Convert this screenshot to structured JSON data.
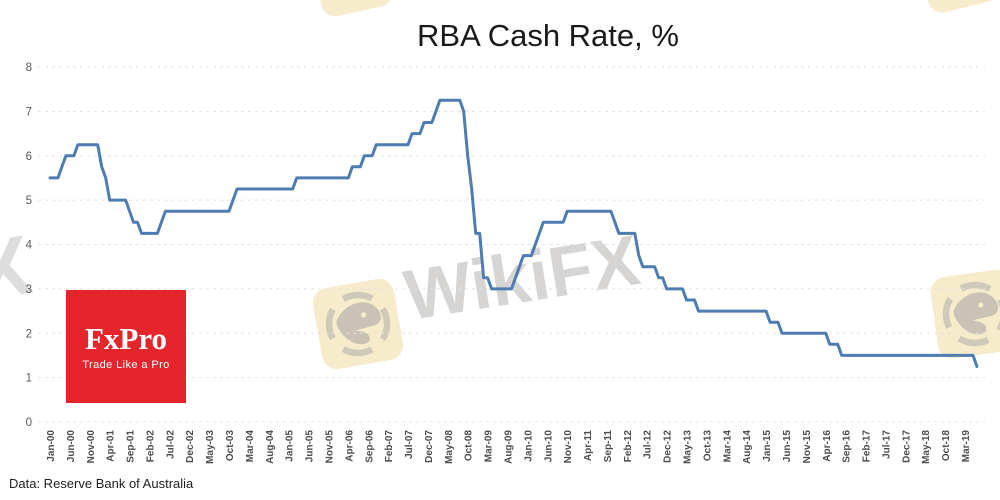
{
  "title": "RBA Cash Rate, %",
  "source_note": "Data: Reserve Bank of Australia",
  "logo": {
    "name": "FxPro",
    "tagline": "Trade Like a Pro",
    "bg_color": "#e4252b",
    "text_color": "#ffffff"
  },
  "watermark": {
    "text": "WikiFX",
    "partial_text": "X",
    "badge_color": "#f6ebca",
    "glyph_color": "#cbc5b8"
  },
  "chart_data": {
    "type": "line",
    "title": "RBA Cash Rate, %",
    "series_name": "RBA cash rate target, %",
    "x_start": "Jan-00",
    "x_end": "Jun-19",
    "x_tick_interval_months": 5,
    "x_tick_labels": [
      "Jan-00",
      "Jun-00",
      "Nov-00",
      "Apr-01",
      "Sep-01",
      "Feb-02",
      "Jul-02",
      "Dec-02",
      "May-03",
      "Oct-03",
      "Mar-04",
      "Aug-04",
      "Jan-05",
      "Jun-05",
      "Nov-05",
      "Apr-06",
      "Sep-06",
      "Feb-07",
      "Jul-07",
      "Dec-07",
      "May-08",
      "Oct-08",
      "Mar-09",
      "Aug-09",
      "Jan-10",
      "Jun-10",
      "Nov-10",
      "Apr-11",
      "Sep-11",
      "Feb-12",
      "Jul-12",
      "Dec-12",
      "May-13",
      "Oct-13",
      "Mar-14",
      "Aug-14",
      "Jan-15",
      "Jun-15",
      "Nov-15",
      "Apr-16",
      "Sep-16",
      "Feb-17",
      "Jul-17",
      "Dec-17",
      "May-18",
      "Oct-18",
      "Mar-19"
    ],
    "values": [
      5.5,
      5.5,
      5.5,
      5.75,
      6,
      6,
      6,
      6.25,
      6.25,
      6.25,
      6.25,
      6.25,
      6.25,
      5.75,
      5.5,
      5,
      5,
      5,
      5,
      5,
      4.75,
      4.5,
      4.5,
      4.25,
      4.25,
      4.25,
      4.25,
      4.25,
      4.5,
      4.75,
      4.75,
      4.75,
      4.75,
      4.75,
      4.75,
      4.75,
      4.75,
      4.75,
      4.75,
      4.75,
      4.75,
      4.75,
      4.75,
      4.75,
      4.75,
      4.75,
      5,
      5.25,
      5.25,
      5.25,
      5.25,
      5.25,
      5.25,
      5.25,
      5.25,
      5.25,
      5.25,
      5.25,
      5.25,
      5.25,
      5.25,
      5.25,
      5.5,
      5.5,
      5.5,
      5.5,
      5.5,
      5.5,
      5.5,
      5.5,
      5.5,
      5.5,
      5.5,
      5.5,
      5.5,
      5.5,
      5.75,
      5.75,
      5.75,
      6,
      6,
      6,
      6.25,
      6.25,
      6.25,
      6.25,
      6.25,
      6.25,
      6.25,
      6.25,
      6.25,
      6.5,
      6.5,
      6.5,
      6.75,
      6.75,
      6.75,
      7,
      7.25,
      7.25,
      7.25,
      7.25,
      7.25,
      7.25,
      7,
      6,
      5.25,
      4.25,
      4.25,
      3.25,
      3.25,
      3,
      3,
      3,
      3,
      3,
      3,
      3.25,
      3.5,
      3.75,
      3.75,
      3.75,
      4,
      4.25,
      4.5,
      4.5,
      4.5,
      4.5,
      4.5,
      4.5,
      4.75,
      4.75,
      4.75,
      4.75,
      4.75,
      4.75,
      4.75,
      4.75,
      4.75,
      4.75,
      4.75,
      4.75,
      4.5,
      4.25,
      4.25,
      4.25,
      4.25,
      4.25,
      3.75,
      3.5,
      3.5,
      3.5,
      3.5,
      3.25,
      3.25,
      3,
      3,
      3,
      3,
      3,
      2.75,
      2.75,
      2.75,
      2.5,
      2.5,
      2.5,
      2.5,
      2.5,
      2.5,
      2.5,
      2.5,
      2.5,
      2.5,
      2.5,
      2.5,
      2.5,
      2.5,
      2.5,
      2.5,
      2.5,
      2.5,
      2.25,
      2.25,
      2.25,
      2,
      2,
      2,
      2,
      2,
      2,
      2,
      2,
      2,
      2,
      2,
      2,
      1.75,
      1.75,
      1.75,
      1.5,
      1.5,
      1.5,
      1.5,
      1.5,
      1.5,
      1.5,
      1.5,
      1.5,
      1.5,
      1.5,
      1.5,
      1.5,
      1.5,
      1.5,
      1.5,
      1.5,
      1.5,
      1.5,
      1.5,
      1.5,
      1.5,
      1.5,
      1.5,
      1.5,
      1.5,
      1.5,
      1.5,
      1.5,
      1.5,
      1.5,
      1.5,
      1.5,
      1.5,
      1.25
    ],
    "ylim": [
      0,
      8
    ],
    "y_ticks": [
      0,
      1,
      2,
      3,
      4,
      5,
      6,
      7,
      8
    ],
    "line_color": "#4f7cb1",
    "grid": true,
    "legend": "none",
    "axis_text_color": "#595959"
  }
}
